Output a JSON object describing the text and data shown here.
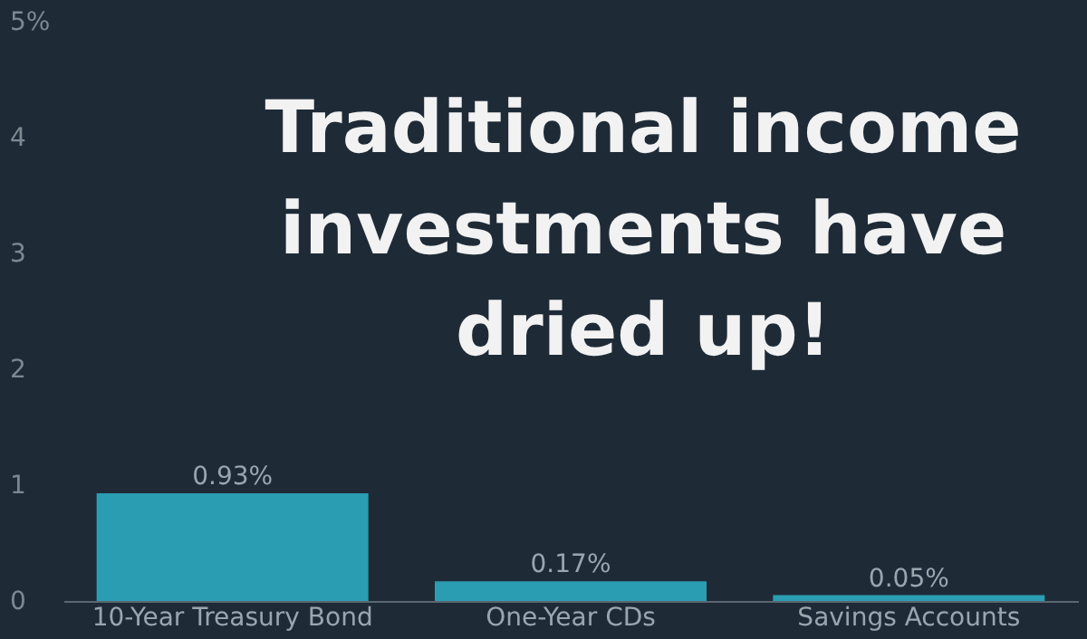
{
  "chart_data": {
    "type": "bar",
    "title": "Traditional income investments have dried up!",
    "categories": [
      "10-Year Treasury Bond",
      "One-Year CDs",
      "Savings Accounts"
    ],
    "values": [
      0.93,
      0.17,
      0.05
    ],
    "color": "#2a9db3",
    "value_labels": [
      "0.93%",
      "0.17%",
      "0.05%"
    ],
    "ylim": [
      0,
      5
    ],
    "yticks": [
      0,
      1,
      2,
      3,
      4,
      {
        "value": 5,
        "label": "5%"
      }
    ],
    "grid": false
  }
}
